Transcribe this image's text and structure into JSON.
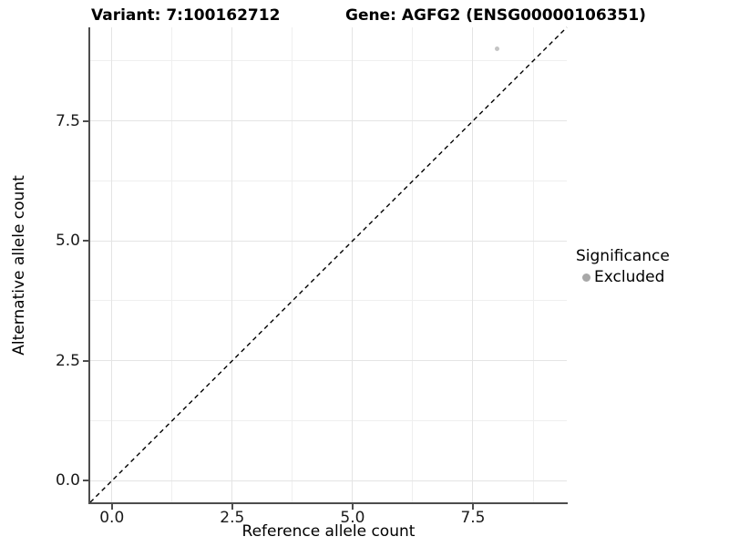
{
  "header": {
    "title_left": "Variant: 7:100162712",
    "title_right": "Gene: AGFG2 (ENSG00000106351)"
  },
  "chart_data": {
    "type": "scatter",
    "title": "Variant: 7:100162712    Gene: AGFG2 (ENSG00000106351)",
    "xlabel": "Reference allele count",
    "ylabel": "Alternative allele count",
    "x_domain": [
      -0.45,
      9.45
    ],
    "y_domain": [
      -0.45,
      9.45
    ],
    "x_major_ticks": [
      0.0,
      2.5,
      5.0,
      7.5
    ],
    "x_tick_labels": [
      "0.0",
      "2.5",
      "5.0",
      "7.5"
    ],
    "y_major_ticks": [
      0.0,
      2.5,
      5.0,
      7.5
    ],
    "y_tick_labels": [
      "0.0",
      "2.5",
      "5.0",
      "7.5"
    ],
    "minor_ticks": [
      1.25,
      3.75,
      6.25,
      8.75
    ],
    "grid": true,
    "points": [
      {
        "x": 8,
        "y": 9,
        "series": "Excluded"
      }
    ],
    "identity_line": {
      "slope": 1,
      "intercept": 0,
      "style": "dashed"
    },
    "legend": {
      "position": "right",
      "title": "Significance",
      "entries": [
        {
          "label": "Excluded",
          "color": "#a8a8a8"
        }
      ]
    },
    "colors": {
      "point": "#c4c4c4",
      "grid_major": "#e4e4e4",
      "grid_minor": "#efefef",
      "axis_line": "#4d4d4d",
      "identity_line": "#000000",
      "background": "#ffffff",
      "text": "#000000"
    }
  }
}
